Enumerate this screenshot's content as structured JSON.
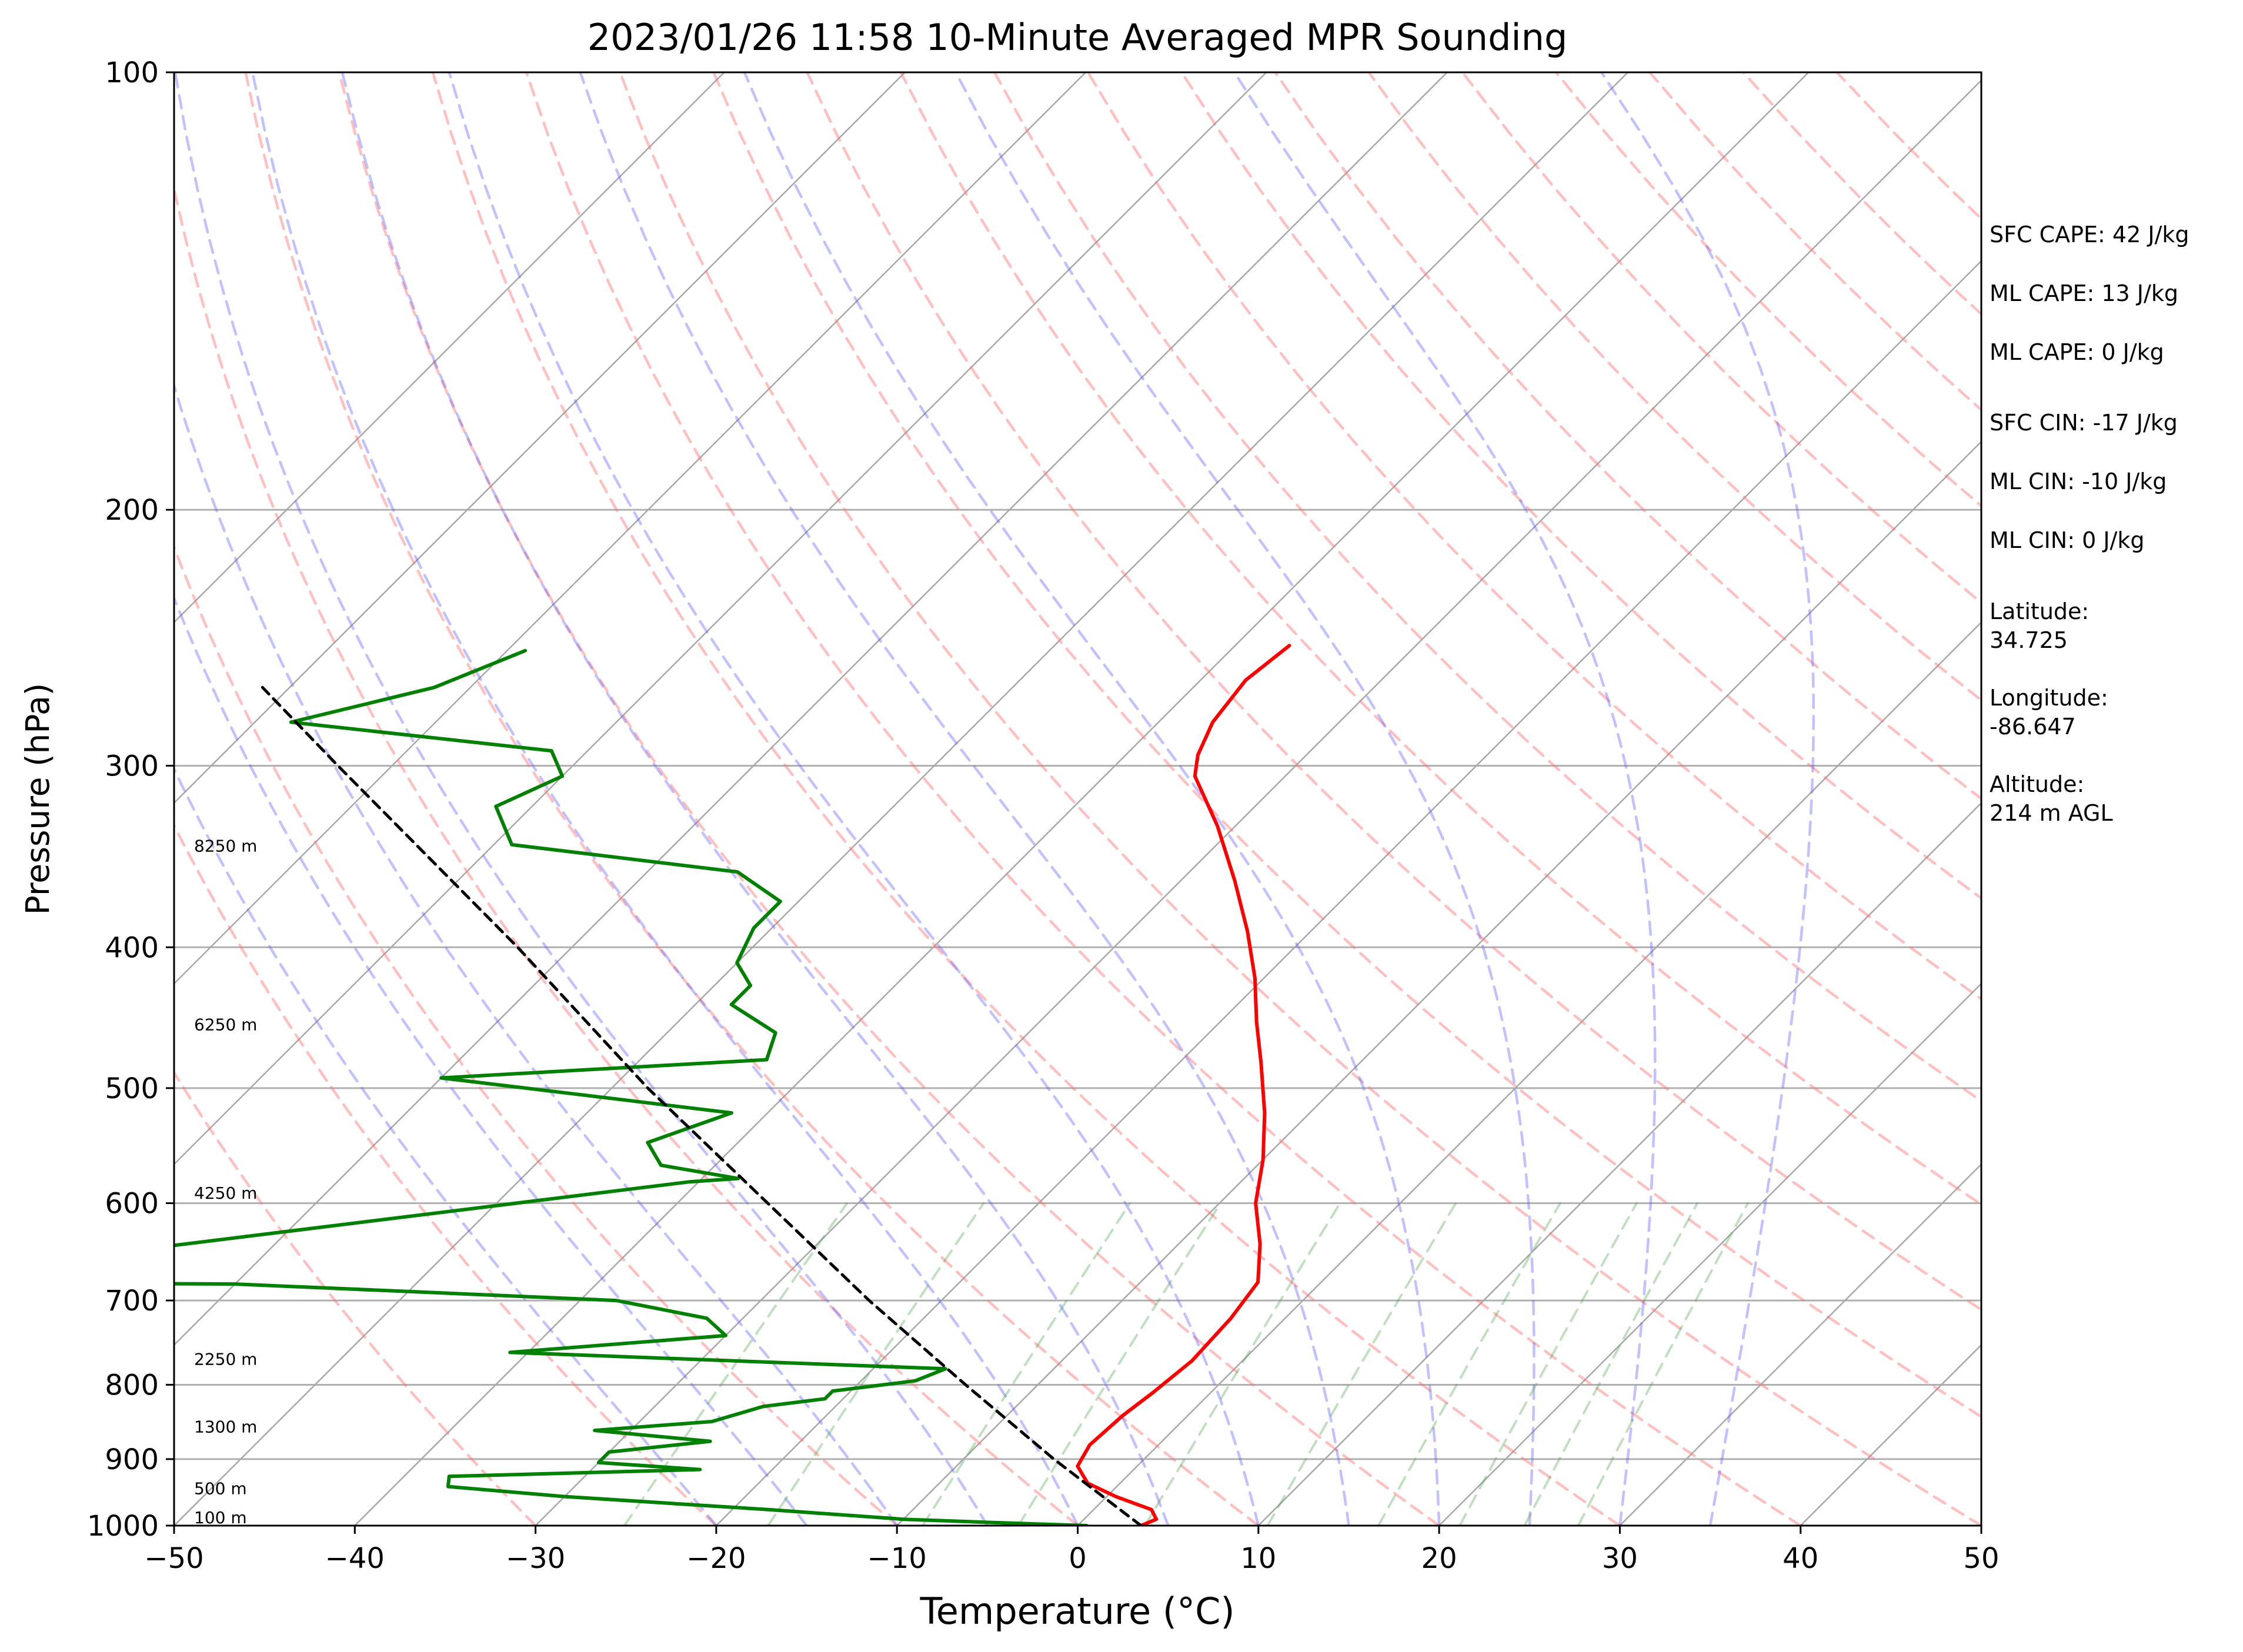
{
  "chart_data": {
    "type": "line",
    "title": "2023/01/26 11:58 10-Minute Averaged MPR Sounding",
    "xlabel": "Temperature (°C)",
    "ylabel": "Pressure (hPa)",
    "xlim": [
      -50,
      50
    ],
    "ylim": [
      1000,
      100
    ],
    "y_scale": "log",
    "skew": "skew-T log-P",
    "grid": true,
    "x_ticks": [
      "−50",
      "−40",
      "−30",
      "−20",
      "−10",
      "0",
      "10",
      "20",
      "30",
      "40",
      "50"
    ],
    "y_ticks": [
      "1000",
      "900",
      "800",
      "700",
      "600",
      "500",
      "400",
      "300",
      "200",
      "100"
    ],
    "series": [
      {
        "color": "#ff0000",
        "points": [
          {
            "p": 1000,
            "t": 3.5
          },
          {
            "p": 990,
            "t": 4.0
          },
          {
            "p": 975,
            "t": 3.2
          },
          {
            "p": 955,
            "t": 0.5
          },
          {
            "p": 935,
            "t": -1.8
          },
          {
            "p": 910,
            "t": -3.3
          },
          {
            "p": 880,
            "t": -3.8
          },
          {
            "p": 840,
            "t": -3.6
          },
          {
            "p": 810,
            "t": -3.2
          },
          {
            "p": 770,
            "t": -2.8
          },
          {
            "p": 720,
            "t": -3.0
          },
          {
            "p": 680,
            "t": -3.5
          },
          {
            "p": 640,
            "t": -5.5
          },
          {
            "p": 600,
            "t": -8.0
          },
          {
            "p": 560,
            "t": -10.0
          },
          {
            "p": 520,
            "t": -12.5
          },
          {
            "p": 480,
            "t": -15.5
          },
          {
            "p": 450,
            "t": -18.0
          },
          {
            "p": 420,
            "t": -20.5
          },
          {
            "p": 390,
            "t": -23.5
          },
          {
            "p": 360,
            "t": -27.0
          },
          {
            "p": 330,
            "t": -31.0
          },
          {
            "p": 305,
            "t": -35.0
          },
          {
            "p": 295,
            "t": -36.0
          },
          {
            "p": 280,
            "t": -37.0
          },
          {
            "p": 262,
            "t": -37.5
          },
          {
            "p": 248,
            "t": -37.0
          }
        ]
      },
      {
        "color": "#008000",
        "points": [
          {
            "p": 1000,
            "t": 0.5
          },
          {
            "p": 995,
            "t": -5.0
          },
          {
            "p": 990,
            "t": -10.0
          },
          {
            "p": 975,
            "t": -18.0
          },
          {
            "p": 955,
            "t": -30.0
          },
          {
            "p": 940,
            "t": -37.0
          },
          {
            "p": 925,
            "t": -37.5
          },
          {
            "p": 915,
            "t": -24.0
          },
          {
            "p": 905,
            "t": -30.0
          },
          {
            "p": 890,
            "t": -30.0
          },
          {
            "p": 875,
            "t": -25.0
          },
          {
            "p": 860,
            "t": -32.0
          },
          {
            "p": 848,
            "t": -26.0
          },
          {
            "p": 828,
            "t": -24.0
          },
          {
            "p": 818,
            "t": -21.0
          },
          {
            "p": 808,
            "t": -21.0
          },
          {
            "p": 795,
            "t": -17.0
          },
          {
            "p": 780,
            "t": -16.0
          },
          {
            "p": 760,
            "t": -41.0
          },
          {
            "p": 740,
            "t": -30.0
          },
          {
            "p": 720,
            "t": -32.0
          },
          {
            "p": 700,
            "t": -38.0
          },
          {
            "p": 682,
            "t": -60.0
          },
          {
            "p": 680,
            "t": -80.0
          },
          {
            "p": 580,
            "t": -40.5
          },
          {
            "p": 577,
            "t": -38.0
          },
          {
            "p": 565,
            "t": -43.0
          },
          {
            "p": 545,
            "t": -45.0
          },
          {
            "p": 520,
            "t": -42.0
          },
          {
            "p": 492,
            "t": -60.0
          },
          {
            "p": 478,
            "t": -43.0
          },
          {
            "p": 458,
            "t": -44.0
          },
          {
            "p": 438,
            "t": -48.0
          },
          {
            "p": 425,
            "t": -48.0
          },
          {
            "p": 410,
            "t": -50.0
          },
          {
            "p": 388,
            "t": -51.0
          },
          {
            "p": 372,
            "t": -51.0
          },
          {
            "p": 355,
            "t": -55.0
          },
          {
            "p": 340,
            "t": -69.0
          },
          {
            "p": 320,
            "t": -72.0
          },
          {
            "p": 305,
            "t": -70.0
          },
          {
            "p": 293,
            "t": -72.0
          },
          {
            "p": 280,
            "t": -88.0
          },
          {
            "p": 265,
            "t": -82.0
          },
          {
            "p": 250,
            "t": -79.0
          }
        ]
      },
      {
        "color": "#000000",
        "dashed": true,
        "points": [
          {
            "p": 1000,
            "t": 3.5
          },
          {
            "p": 900,
            "t": -5.0
          },
          {
            "p": 800,
            "t": -14.0
          },
          {
            "p": 700,
            "t": -24.0
          },
          {
            "p": 600,
            "t": -35.0
          },
          {
            "p": 500,
            "t": -48.0
          },
          {
            "p": 400,
            "t": -63.0
          },
          {
            "p": 300,
            "t": -83.0
          },
          {
            "p": 265,
            "t": -91.5
          }
        ]
      }
    ],
    "reference_lines": {
      "isotherms_c": [
        -100,
        -90,
        -80,
        -70,
        -60,
        -50,
        -40,
        -30,
        -20,
        -10,
        0,
        10,
        20,
        30,
        40,
        50
      ],
      "dry_adiabats_c": [
        -30,
        -20,
        -10,
        0,
        10,
        20,
        30,
        40,
        50,
        60,
        70,
        80,
        90,
        100,
        110,
        120,
        130,
        140,
        150,
        160,
        170,
        180
      ],
      "moist_adiabats_c": [
        -20,
        -15,
        -10,
        -5,
        0,
        5,
        10,
        15,
        20,
        25,
        30,
        35
      ],
      "mixing_ratios_gkg": [
        0.5,
        1,
        2,
        3,
        5,
        8,
        12,
        16,
        20,
        24
      ]
    },
    "height_labels": [
      {
        "p": 1000,
        "text": "100 m"
      },
      {
        "p": 955,
        "text": "500 m"
      },
      {
        "p": 866,
        "text": "1300 m"
      },
      {
        "p": 778,
        "text": "2250 m"
      },
      {
        "p": 598,
        "text": "4250 m"
      },
      {
        "p": 458,
        "text": "6250 m"
      },
      {
        "p": 345,
        "text": "8250 m"
      }
    ],
    "annotations": [
      "SFC CAPE: 42 J/kg",
      "ML CAPE: 13 J/kg",
      "ML CAPE: 0 J/kg",
      "SFC CIN: -17 J/kg",
      "ML CIN: -10 J/kg",
      "ML CIN: 0 J/kg",
      "Latitude:",
      "34.725",
      "Longitude:",
      "-86.647",
      "Altitude:",
      "214 m AGL"
    ]
  }
}
